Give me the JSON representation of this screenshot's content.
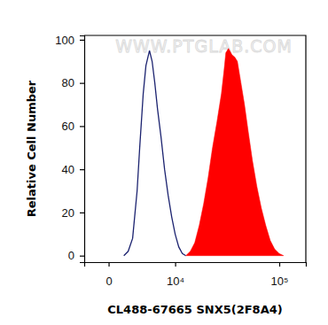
{
  "chart_data": {
    "type": "area",
    "x_label": "CL488-67665 SNX5(2F8A4)",
    "y_label": "Relative Cell Number",
    "annotations": [
      "WWW.PTGLAB.COM"
    ],
    "xlim": [
      -2300,
      170000
    ],
    "ylim": [
      -3,
      102
    ],
    "xticks": [
      0,
      {
        "value": 10000,
        "label": "10⁴"
      },
      {
        "value": 100000,
        "label": "10⁵"
      }
    ],
    "yticks": [
      0,
      20,
      40,
      60,
      80,
      100
    ],
    "grid": false,
    "series": [
      {
        "type": "line",
        "color": "#1c2370",
        "x": [
          1300,
          1750,
          2250,
          2800,
          3140,
          3630,
          4030,
          4590,
          5030,
          5500,
          6000,
          6690,
          7440,
          8240,
          9100,
          10000,
          11000,
          12060,
          13180
        ],
        "values": [
          0,
          2,
          8,
          30,
          50,
          75,
          88,
          95,
          90,
          80,
          68,
          55,
          40,
          28,
          18,
          10,
          4,
          1,
          0
        ]
      },
      {
        "type": "area",
        "color": "#ff0000",
        "x": [
          13180,
          14710,
          16380,
          18200,
          20170,
          22320,
          24670,
          27230,
          30020,
          31820,
          33060,
          35020,
          37780,
          40000,
          42300,
          45600,
          49100,
          52900,
          57950,
          63500,
          69550,
          76100,
          83400,
          91200,
          99750,
          109000
        ],
        "values": [
          0,
          2,
          6,
          14,
          24,
          36,
          50,
          62,
          75,
          86,
          94,
          96,
          93,
          92,
          90,
          80,
          70,
          58,
          44,
          32,
          22,
          14,
          7,
          3,
          1,
          0
        ]
      }
    ]
  }
}
